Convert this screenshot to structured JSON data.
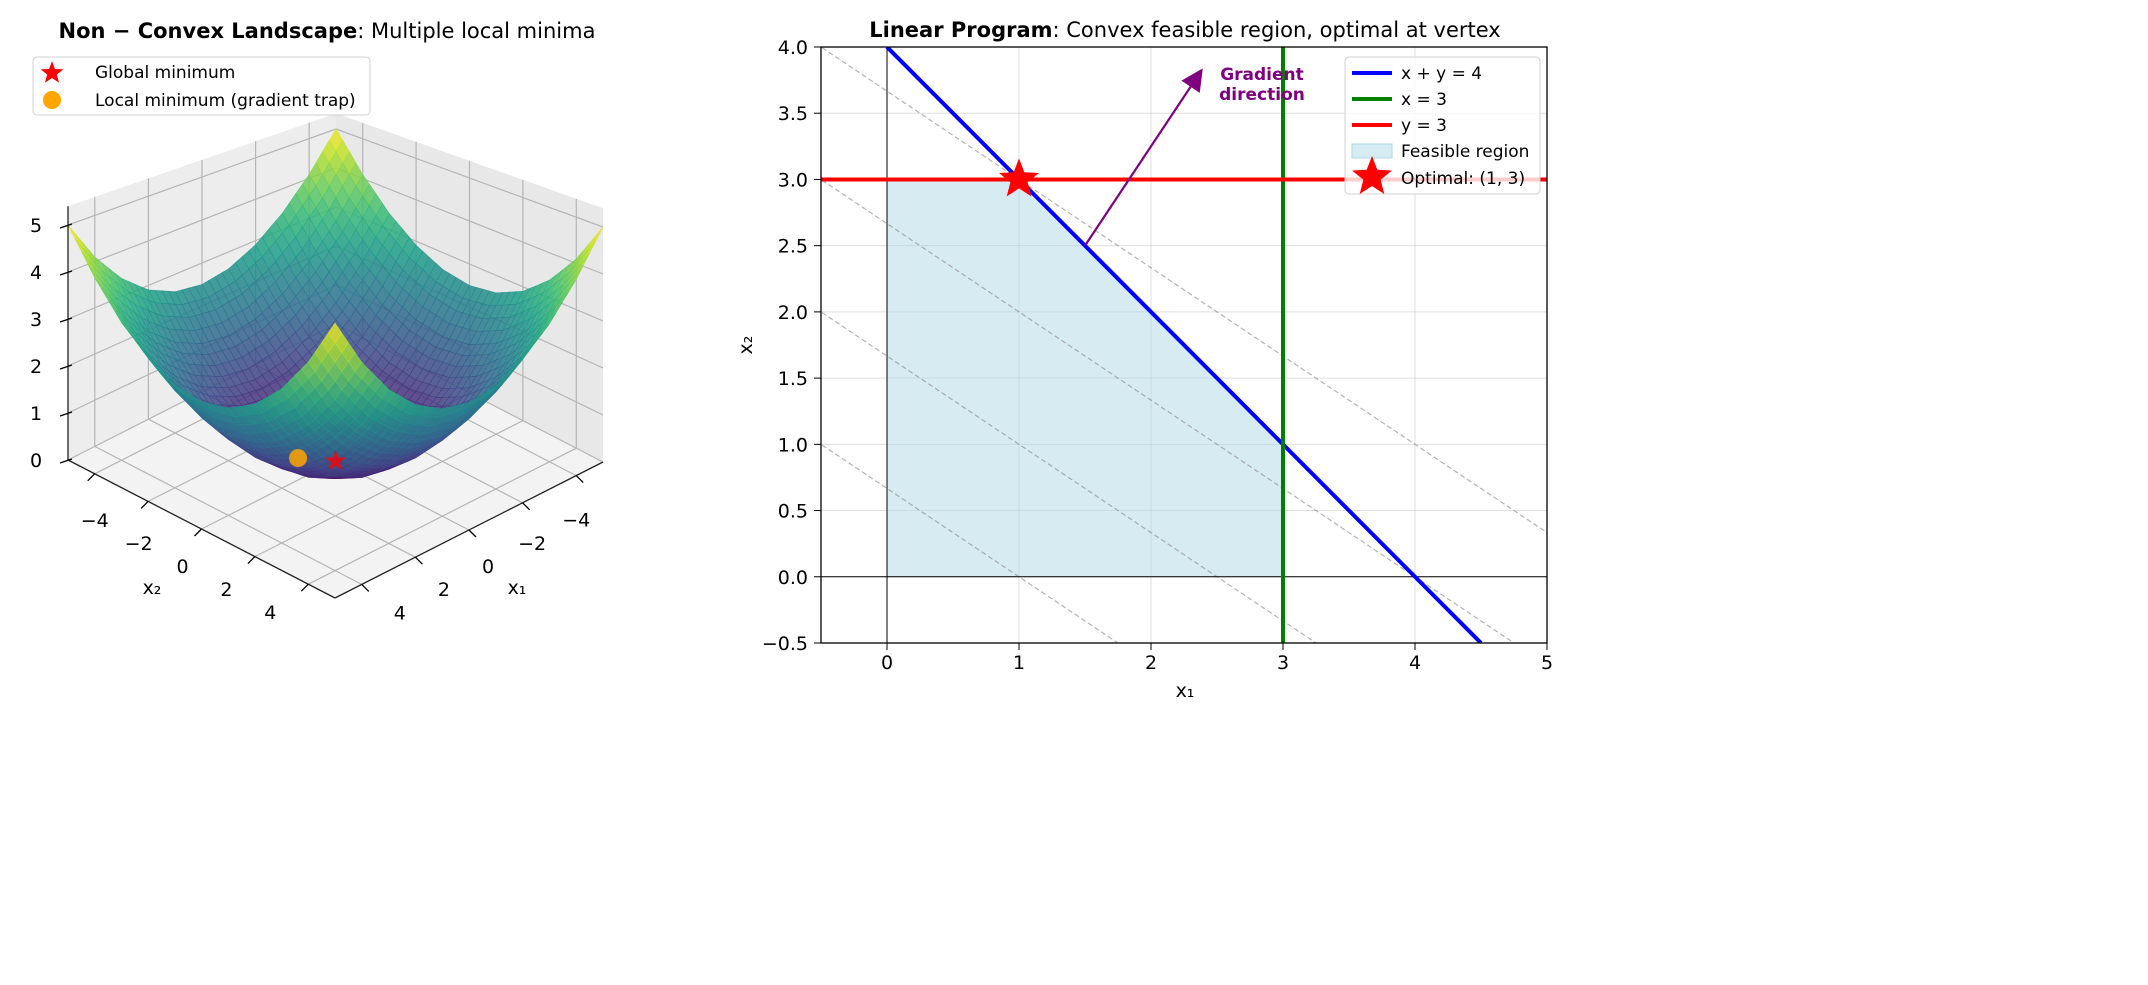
{
  "chart_data": [
    {
      "type": "surface",
      "title_bold": "Non − Convex Landscape",
      "title_rest": ": Multiple local minima",
      "xlabel": "x₁",
      "ylabel": "x₂",
      "xlim": [
        -5,
        5
      ],
      "ylim": [
        -5,
        5
      ],
      "zlim": [
        0,
        5.4
      ],
      "xticks": [
        -4,
        -2,
        0,
        2,
        4
      ],
      "yticks": [
        -4,
        -2,
        0,
        2,
        4
      ],
      "zticks": [
        0,
        1,
        2,
        3,
        4,
        5
      ],
      "colormap": "viridis",
      "grid": true,
      "z_grid_axis": [
        -5,
        -4,
        -3,
        -2,
        -1,
        0,
        1,
        2,
        3,
        4,
        5
      ],
      "z_grid": [
        [
          5.0,
          4.1,
          3.4,
          2.9,
          2.6,
          2.5,
          2.6,
          2.9,
          3.4,
          4.1,
          5.0
        ],
        [
          4.1,
          3.2,
          2.5,
          2.0,
          1.7,
          1.6,
          1.7,
          2.0,
          2.5,
          3.2,
          4.1
        ],
        [
          3.4,
          2.5,
          1.8,
          1.3,
          1.0,
          0.9,
          1.0,
          1.3,
          1.8,
          2.5,
          3.4
        ],
        [
          2.9,
          2.0,
          1.3,
          0.8,
          0.5,
          0.4,
          0.5,
          0.8,
          1.3,
          2.0,
          2.9
        ],
        [
          2.6,
          1.7,
          1.0,
          0.5,
          0.2,
          0.1,
          0.2,
          0.5,
          1.0,
          1.7,
          2.6
        ],
        [
          2.5,
          1.6,
          0.9,
          0.4,
          0.1,
          0.0,
          0.1,
          0.4,
          0.9,
          1.6,
          2.5
        ],
        [
          2.6,
          1.7,
          1.0,
          0.5,
          0.2,
          0.1,
          0.2,
          0.5,
          1.0,
          1.7,
          2.6
        ],
        [
          2.9,
          2.0,
          1.3,
          0.8,
          0.5,
          0.4,
          0.5,
          0.8,
          1.3,
          2.0,
          2.9
        ],
        [
          3.4,
          2.5,
          1.8,
          1.3,
          1.0,
          0.9,
          1.0,
          1.3,
          1.8,
          2.5,
          3.4
        ],
        [
          4.1,
          3.2,
          2.5,
          2.0,
          1.7,
          1.6,
          1.7,
          2.0,
          2.5,
          3.2,
          4.1
        ],
        [
          5.0,
          4.1,
          3.4,
          2.9,
          2.6,
          2.5,
          2.6,
          2.9,
          3.4,
          4.1,
          5.0
        ]
      ],
      "markers": [
        {
          "label": "Global minimum",
          "shape": "star",
          "color": "#ff0000",
          "point": [
            0,
            0,
            0
          ]
        },
        {
          "label": "Local minimum (gradient trap)",
          "shape": "circle",
          "color": "#ffa500",
          "point": [
            0.6,
            -0.8,
            0
          ]
        }
      ],
      "legend_position": "upper-left"
    },
    {
      "type": "line",
      "title_bold": "Linear Program",
      "title_rest": ": Convex feasible region, optimal at vertex",
      "xlabel": "x₁",
      "ylabel": "x₂",
      "xlim": [
        -0.5,
        5
      ],
      "ylim": [
        -0.5,
        4.0
      ],
      "xticks": [
        0,
        1,
        2,
        3,
        4,
        5
      ],
      "yticks": [
        -0.5,
        0.0,
        0.5,
        1.0,
        1.5,
        2.0,
        2.5,
        3.0,
        3.5,
        4.0
      ],
      "grid": true,
      "series": [
        {
          "name": "x + y = 4",
          "color": "#0000ff",
          "points": [
            [
              0,
              4
            ],
            [
              4.5,
              -0.5
            ]
          ]
        },
        {
          "name": "x = 3",
          "color": "#008000",
          "points": [
            [
              3,
              -0.5
            ],
            [
              3,
              4
            ]
          ]
        },
        {
          "name": "y = 3",
          "color": "#ff0000",
          "points": [
            [
              -0.5,
              3
            ],
            [
              5,
              3
            ]
          ]
        }
      ],
      "feasible_region": {
        "name": "Feasible region",
        "color": "#add8e6",
        "vertices": [
          [
            0,
            0
          ],
          [
            3,
            0
          ],
          [
            3,
            1
          ],
          [
            1,
            3
          ],
          [
            0,
            3
          ]
        ]
      },
      "optimal": {
        "name": "Optimal: (1, 3)",
        "color": "#ff0000",
        "point": [
          1,
          3
        ]
      },
      "objective_contours": {
        "coefficients": [
          2,
          3
        ],
        "levels": [
          2,
          5,
          8,
          11
        ],
        "color": "#808080"
      },
      "gradient_arrow": {
        "label_line1": "Gradient",
        "label_line2": "direction",
        "color": "#800080",
        "from": [
          1.5,
          2.5
        ],
        "to": [
          2.3,
          3.7
        ]
      },
      "legend_position": "upper-right"
    }
  ]
}
